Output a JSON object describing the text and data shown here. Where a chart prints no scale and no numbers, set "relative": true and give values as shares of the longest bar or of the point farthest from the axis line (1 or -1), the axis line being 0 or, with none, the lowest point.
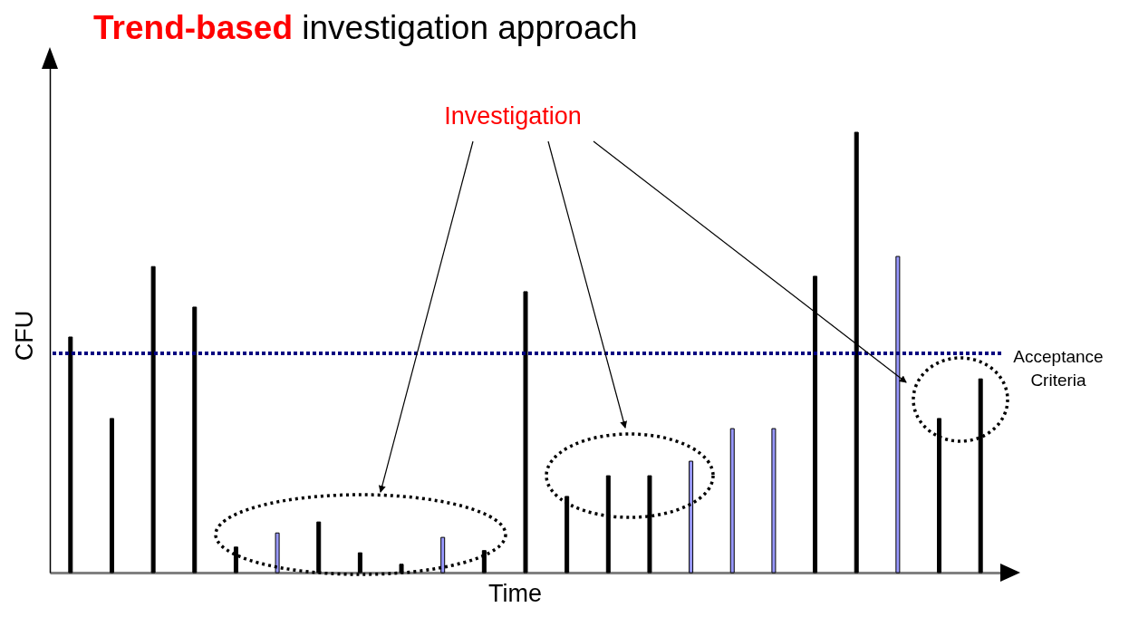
{
  "chart_data": {
    "type": "bar",
    "title": "Trend-based investigation approach",
    "xlabel": "Time",
    "ylabel": "CFU",
    "relative": true,
    "categories": [
      null,
      null,
      null,
      null,
      null,
      null,
      null,
      null,
      null,
      null,
      null,
      null,
      null,
      null,
      null,
      null,
      null,
      null,
      null,
      null,
      null,
      null,
      null
    ],
    "values": [
      0.535,
      0.35,
      0.695,
      0.603,
      0.058,
      0.09,
      0.115,
      0.045,
      0.019,
      0.08,
      0.05,
      0.638,
      0.173,
      0.22,
      0.22,
      0.253,
      0.327,
      0.327,
      0.673,
      1,
      0.718,
      0.35,
      0.44
    ],
    "colors": [
      "#000000",
      "#000000",
      "#000000",
      "#000000",
      "#000000",
      "#9999ff",
      "#000000",
      "#000000",
      "#000000",
      "#9999ff",
      "#000000",
      "#000000",
      "#000000",
      "#000000",
      "#000000",
      "#9999ff",
      "#9999ff",
      "#9999ff",
      "#000000",
      "#000000",
      "#9999ff",
      "#000000",
      "#000000"
    ],
    "ref_lines": [
      {
        "axis": "y",
        "value": 0.498,
        "label": "Acceptance Criteria",
        "color": "#000080",
        "line_style": "dotted"
      }
    ],
    "annotations": [
      "Investigation"
    ]
  }
}
